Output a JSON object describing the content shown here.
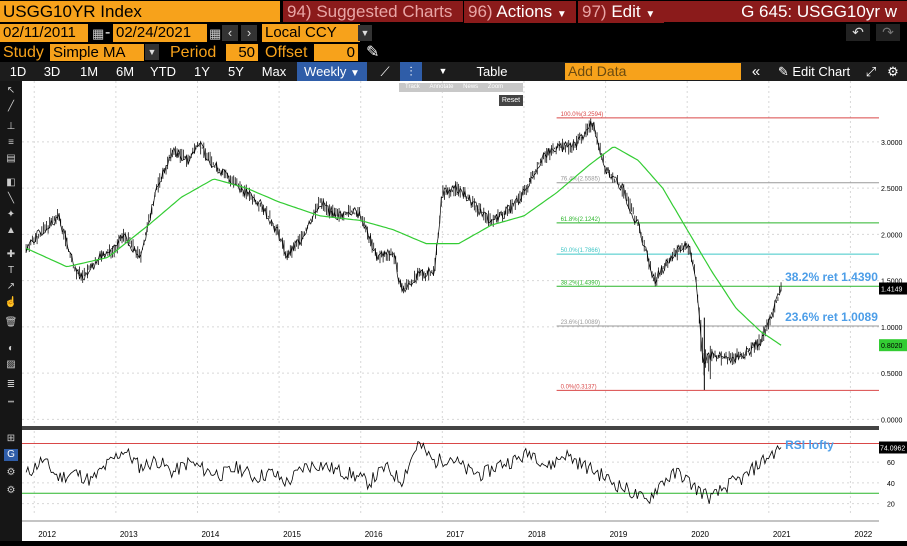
{
  "header": {
    "ticker": "USGG10YR Index",
    "menu_suggested": {
      "num": "94)",
      "label": "Suggested Charts"
    },
    "menu_actions": {
      "num": "96)",
      "label": "Actions"
    },
    "menu_edit": {
      "num": "97)",
      "label": "Edit"
    },
    "screen_title": "G 645: USGG10yr w"
  },
  "dates": {
    "start": "02/11/2011",
    "end": "02/24/2021",
    "currency": "Local CCY"
  },
  "study": {
    "label": "Study",
    "value": "Simple MA",
    "period_label": "Period",
    "period": "50",
    "offset_label": "Offset",
    "offset": "0"
  },
  "toolbar": {
    "ranges": [
      "1D",
      "3D",
      "1M",
      "6M",
      "YTD",
      "1Y",
      "5Y",
      "Max"
    ],
    "frequency": "Weekly",
    "table_label": "Table",
    "add_data_placeholder": "Add Data",
    "edit_chart_label": "Edit Chart"
  },
  "chart_tools": {
    "items": [
      "Track",
      "Annotate",
      "News",
      "Zoom"
    ],
    "reset": "Reset"
  },
  "chart_data": {
    "type": "line",
    "x_labels": [
      "2012",
      "2013",
      "2014",
      "2015",
      "2016",
      "2017",
      "2018",
      "2019",
      "2020",
      "2021",
      "2022"
    ],
    "y_ticks": [
      "3.0000",
      "2.5000",
      "2.0000",
      "1.5000",
      "1.0000",
      "0.5000",
      "0.0000"
    ],
    "ylim": [
      -0.05,
      3.55
    ],
    "price_series": {
      "x": [
        2011.9,
        2012.0,
        2012.3,
        2012.5,
        2012.6,
        2012.8,
        2013.0,
        2013.1,
        2013.3,
        2013.5,
        2013.7,
        2013.9,
        2014.0,
        2014.2,
        2014.4,
        2014.6,
        2014.8,
        2015.0,
        2015.1,
        2015.3,
        2015.5,
        2015.7,
        2015.9,
        2016.0,
        2016.2,
        2016.4,
        2016.5,
        2016.7,
        2016.9,
        2017.0,
        2017.2,
        2017.4,
        2017.6,
        2017.8,
        2018.0,
        2018.2,
        2018.4,
        2018.6,
        2018.7,
        2018.85,
        2019.0,
        2019.2,
        2019.4,
        2019.6,
        2019.8,
        2020.0,
        2020.1,
        2020.2,
        2020.3,
        2020.5,
        2020.7,
        2020.9,
        2021.0,
        2021.15
      ],
      "y": [
        1.85,
        1.95,
        2.2,
        1.6,
        1.55,
        1.75,
        1.85,
        2.0,
        1.75,
        2.5,
        2.9,
        2.8,
        3.0,
        2.75,
        2.6,
        2.45,
        2.3,
        2.0,
        1.75,
        2.0,
        2.35,
        2.2,
        2.25,
        2.2,
        1.75,
        1.8,
        1.4,
        1.55,
        1.6,
        2.45,
        2.5,
        2.3,
        2.15,
        2.25,
        2.45,
        2.8,
        2.95,
        2.95,
        3.05,
        3.2,
        2.7,
        2.5,
        2.1,
        1.5,
        1.75,
        1.9,
        1.6,
        0.6,
        0.7,
        0.65,
        0.7,
        0.85,
        1.05,
        1.4149
      ]
    },
    "ma_series": {
      "name": "SMA 50",
      "x": [
        2011.9,
        2012.4,
        2012.9,
        2013.4,
        2013.8,
        2014.2,
        2014.6,
        2015.0,
        2015.5,
        2016.0,
        2016.4,
        2016.8,
        2017.2,
        2017.6,
        2018.0,
        2018.4,
        2018.8,
        2019.1,
        2019.4,
        2019.7,
        2020.0,
        2020.3,
        2020.6,
        2020.9,
        2021.15
      ],
      "y": [
        1.85,
        1.65,
        1.75,
        2.1,
        2.4,
        2.6,
        2.5,
        2.35,
        2.2,
        2.15,
        2.05,
        1.9,
        1.9,
        2.1,
        2.2,
        2.45,
        2.75,
        2.95,
        2.8,
        2.5,
        2.05,
        1.6,
        1.2,
        0.95,
        0.802
      ]
    },
    "fib_levels": [
      {
        "label": "100.0%(3.2594)",
        "value": 3.2594,
        "color": "#d94848"
      },
      {
        "label": "76.4%(2.5585)",
        "value": 2.5585,
        "color": "#999999"
      },
      {
        "label": "61.8%(2.1242)",
        "value": 2.1242,
        "color": "#2ab52a"
      },
      {
        "label": "50.0%(1.7866)",
        "value": 1.7866,
        "color": "#3fc6c6"
      },
      {
        "label": "38.2%(1.4390)",
        "value": 1.439,
        "color": "#2ab52a"
      },
      {
        "label": "23.6%(1.0089)",
        "value": 1.0089,
        "color": "#999999"
      },
      {
        "label": "0.0%(0.3137)",
        "value": 0.3137,
        "color": "#d94848"
      }
    ],
    "annotations": [
      {
        "text": "38.2% ret 1.4390",
        "value": 1.439
      },
      {
        "text": "23.6% ret 1.0089",
        "value": 1.0089
      }
    ],
    "last_price_tag": {
      "text": "1.4149",
      "value": 1.4149
    },
    "ma_tag": {
      "text": "0.8020",
      "value": 0.802
    },
    "rsi": {
      "label": "RSI lofty",
      "y_ticks": [
        "60",
        "40",
        "20"
      ],
      "ylim": [
        10,
        90
      ],
      "levels": [
        {
          "value": 78,
          "color": "#d94848"
        },
        {
          "value": 30,
          "color": "#2ab52a"
        }
      ],
      "last_tag": "74.0962",
      "last": 74.0962,
      "x": [
        2011.9,
        2012.1,
        2012.3,
        2012.5,
        2012.7,
        2012.9,
        2013.1,
        2013.3,
        2013.5,
        2013.7,
        2013.9,
        2014.1,
        2014.3,
        2014.5,
        2014.7,
        2014.9,
        2015.1,
        2015.3,
        2015.5,
        2015.7,
        2015.9,
        2016.1,
        2016.3,
        2016.5,
        2016.7,
        2016.9,
        2017.1,
        2017.3,
        2017.5,
        2017.7,
        2017.9,
        2018.1,
        2018.3,
        2018.5,
        2018.7,
        2018.9,
        2019.1,
        2019.3,
        2019.5,
        2019.7,
        2019.9,
        2020.1,
        2020.3,
        2020.5,
        2020.7,
        2020.9,
        2021.15
      ],
      "y": [
        48,
        62,
        45,
        50,
        42,
        58,
        72,
        55,
        62,
        50,
        60,
        52,
        48,
        55,
        45,
        50,
        40,
        55,
        58,
        52,
        48,
        40,
        55,
        42,
        78,
        60,
        65,
        52,
        48,
        58,
        62,
        70,
        55,
        68,
        58,
        50,
        40,
        32,
        22,
        42,
        50,
        35,
        25,
        38,
        45,
        60,
        74.1
      ]
    }
  },
  "colors": {
    "orange": "#f7a21b",
    "red_menu": "#8b1b1b",
    "price": "#000000",
    "ma": "#33cc33",
    "blue_active": "#2f5da8"
  }
}
